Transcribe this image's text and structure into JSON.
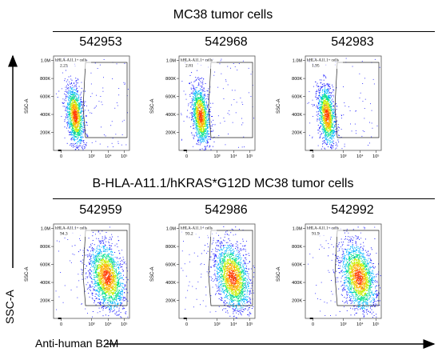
{
  "figure": {
    "y_axis_title": "SSC-A",
    "x_axis_title": "Anti-human B2M"
  },
  "chart_data": [
    {
      "type": "scatter",
      "group": "MC38 tumor cells",
      "sample_id": "542953",
      "gate_label": "hHLA-A11.1+ cells",
      "gate_percent": "2.23",
      "ylabel": "SSC-A",
      "y_ticks": [
        "1.0M",
        "800K",
        "600K",
        "400K",
        "200K"
      ],
      "x_ticks": [
        "0",
        "10³",
        "10⁴",
        "10⁵"
      ]
    },
    {
      "type": "scatter",
      "group": "MC38 tumor cells",
      "sample_id": "542968",
      "gate_label": "hHLA-A11.1+ cells",
      "gate_percent": "2.81",
      "ylabel": "SSC-A",
      "y_ticks": [
        "1.0M",
        "800K",
        "600K",
        "400K",
        "200K"
      ],
      "x_ticks": [
        "0",
        "10³",
        "10⁴",
        "10⁵"
      ]
    },
    {
      "type": "scatter",
      "group": "MC38 tumor cells",
      "sample_id": "542983",
      "gate_label": "hHLA-A11.1+ cells",
      "gate_percent": "1.95",
      "ylabel": "SSC-A",
      "y_ticks": [
        "1.0M",
        "800K",
        "600K",
        "400K",
        "200K"
      ],
      "x_ticks": [
        "0",
        "10³",
        "10⁴",
        "10⁵"
      ]
    },
    {
      "type": "scatter",
      "group": "B-HLA-A11.1/hKRAS*G12D MC38 tumor cells",
      "sample_id": "542959",
      "gate_label": "hHLA-A11.1+ cells",
      "gate_percent": "94.3",
      "ylabel": "SSC-A",
      "y_ticks": [
        "1.0M",
        "800K",
        "600K",
        "400K",
        "200K"
      ],
      "x_ticks": [
        "0",
        "10³",
        "10⁴",
        "10⁵"
      ]
    },
    {
      "type": "scatter",
      "group": "B-HLA-A11.1/hKRAS*G12D MC38 tumor cells",
      "sample_id": "542986",
      "gate_label": "hHLA-A11.1+ cells",
      "gate_percent": "93.2",
      "ylabel": "SSC-A",
      "y_ticks": [
        "1.0M",
        "800K",
        "600K",
        "400K",
        "200K"
      ],
      "x_ticks": [
        "0",
        "10³",
        "10⁴",
        "10⁵"
      ]
    },
    {
      "type": "scatter",
      "group": "B-HLA-A11.1/hKRAS*G12D MC38 tumor cells",
      "sample_id": "542992",
      "gate_label": "hHLA-A11.1+ cells",
      "gate_percent": "91.9",
      "ylabel": "SSC-A",
      "y_ticks": [
        "1.0M",
        "800K",
        "600K",
        "400K",
        "200K"
      ],
      "x_ticks": [
        "0",
        "10³",
        "10⁴",
        "10⁵"
      ]
    }
  ],
  "groups": [
    {
      "title": "MC38 tumor cells"
    },
    {
      "title": "B-HLA-A11.1/hKRAS*G12D MC38 tumor cells"
    }
  ],
  "colors": {
    "density": [
      "#1a1aff",
      "#00b4ff",
      "#00e08a",
      "#c8f000",
      "#ffb000",
      "#ff3a00"
    ],
    "axis": "#000000",
    "gate": "#222222"
  }
}
